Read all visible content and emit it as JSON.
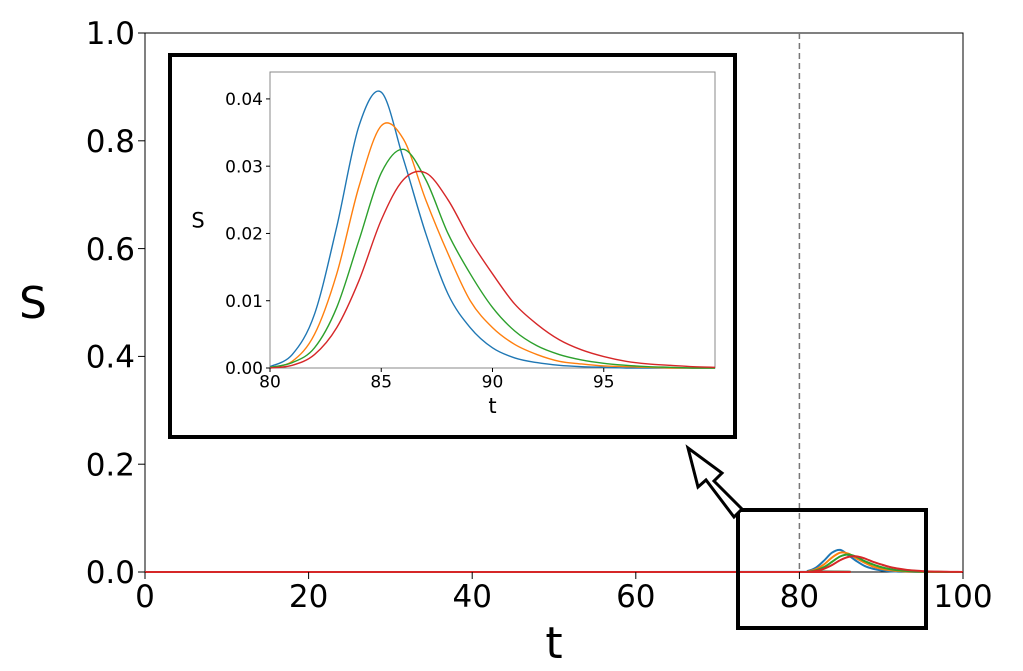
{
  "chart_data": [
    {
      "type": "line",
      "xlabel": "t",
      "ylabel": "S",
      "x": [
        0,
        80,
        81,
        82,
        83,
        84,
        85,
        86,
        87,
        88,
        89,
        90,
        91,
        92,
        93,
        94,
        95,
        96,
        97,
        98,
        99,
        100
      ],
      "xlim": [
        0,
        100
      ],
      "xticks": [
        0,
        20,
        40,
        60,
        80,
        100
      ],
      "ylim": [
        0,
        1
      ],
      "yticks": [
        {
          "value": 0,
          "label": "0.0"
        },
        0.2,
        0.4,
        0.6,
        0.8,
        {
          "value": 1,
          "label": "1.0"
        }
      ],
      "vline": 80,
      "series": [
        {
          "color": "#1f77b4",
          "values": [
            0,
            0.0002,
            0.002,
            0.008,
            0.021,
            0.036,
            0.041,
            0.031,
            0.02,
            0.011,
            0.006,
            0.003,
            0.0015,
            0.0008,
            0.0004,
            0.0002,
            0.0001,
            0,
            0,
            0,
            0,
            0
          ]
        },
        {
          "color": "#ff7f0e",
          "values": [
            0,
            0.0001,
            0.001,
            0.005,
            0.014,
            0.027,
            0.036,
            0.034,
            0.025,
            0.017,
            0.01,
            0.006,
            0.0035,
            0.002,
            0.001,
            0.0006,
            0.0003,
            0.0002,
            0.0001,
            0,
            0,
            0
          ]
        },
        {
          "color": "#2ca02c",
          "values": [
            0,
            0.0001,
            0.0008,
            0.003,
            0.009,
            0.019,
            0.029,
            0.0325,
            0.028,
            0.02,
            0.014,
            0.009,
            0.0055,
            0.0033,
            0.002,
            0.0012,
            0.0007,
            0.0004,
            0.0002,
            0.0001,
            0,
            0
          ]
        },
        {
          "color": "#d62728",
          "values": [
            0,
            0,
            0.0004,
            0.002,
            0.006,
            0.013,
            0.022,
            0.028,
            0.029,
            0.025,
            0.019,
            0.014,
            0.0095,
            0.0065,
            0.0042,
            0.0027,
            0.0017,
            0.001,
            0.0006,
            0.0004,
            0.0002,
            0.0001
          ]
        }
      ]
    },
    {
      "type": "line",
      "xlabel": "t",
      "ylabel": "S",
      "x": [
        80,
        81,
        82,
        83,
        84,
        85,
        86,
        87,
        88,
        89,
        90,
        91,
        92,
        93,
        94,
        95,
        96,
        97,
        98,
        99,
        100
      ],
      "xlim": [
        80,
        100
      ],
      "xticks": [
        80,
        85,
        90,
        95
      ],
      "ylim": [
        0,
        0.044
      ],
      "yticks": [
        {
          "value": 0,
          "label": "0.00"
        },
        0.01,
        0.02,
        0.03,
        0.04
      ],
      "series": [
        {
          "color": "#1f77b4",
          "values": [
            0.0002,
            0.002,
            0.008,
            0.021,
            0.036,
            0.041,
            0.031,
            0.02,
            0.011,
            0.006,
            0.003,
            0.0015,
            0.0008,
            0.0004,
            0.0002,
            0.0001,
            0,
            0,
            0,
            0,
            0
          ]
        },
        {
          "color": "#ff7f0e",
          "values": [
            0.0001,
            0.001,
            0.005,
            0.014,
            0.027,
            0.036,
            0.034,
            0.025,
            0.017,
            0.01,
            0.006,
            0.0035,
            0.002,
            0.001,
            0.0006,
            0.0003,
            0.0002,
            0.0001,
            0,
            0,
            0
          ]
        },
        {
          "color": "#2ca02c",
          "values": [
            0.0001,
            0.0008,
            0.003,
            0.009,
            0.019,
            0.029,
            0.0325,
            0.028,
            0.02,
            0.014,
            0.009,
            0.0055,
            0.0033,
            0.002,
            0.0012,
            0.0007,
            0.0004,
            0.0002,
            0.0001,
            0,
            0
          ]
        },
        {
          "color": "#d62728",
          "values": [
            0,
            0.0004,
            0.002,
            0.006,
            0.013,
            0.022,
            0.028,
            0.029,
            0.025,
            0.019,
            0.014,
            0.0095,
            0.0065,
            0.0042,
            0.0027,
            0.0017,
            0.001,
            0.0006,
            0.0004,
            0.0002,
            0.0001
          ]
        }
      ]
    }
  ]
}
